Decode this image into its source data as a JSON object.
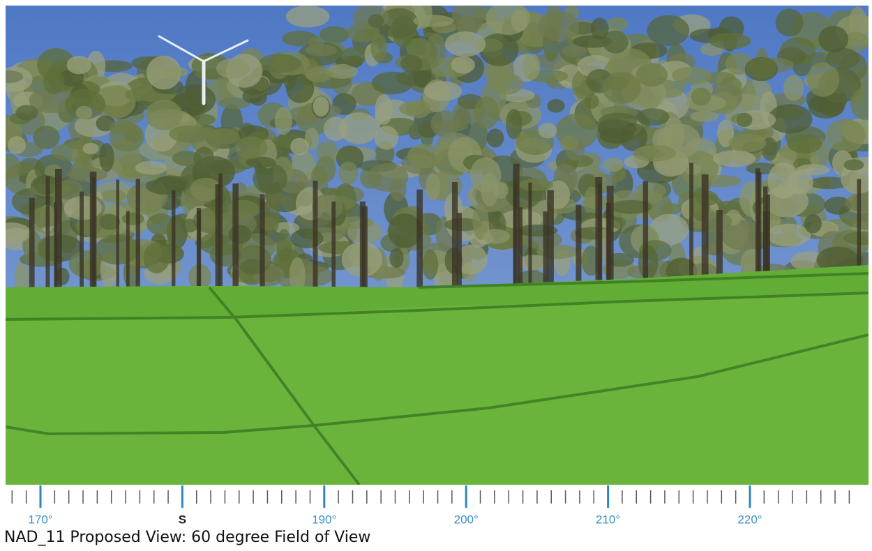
{
  "scale": {
    "labels": [
      "170°",
      "S",
      "190°",
      "200°",
      "210°",
      "220°"
    ]
  },
  "caption": "NAD_11 Proposed View: 60 degree Field of View"
}
